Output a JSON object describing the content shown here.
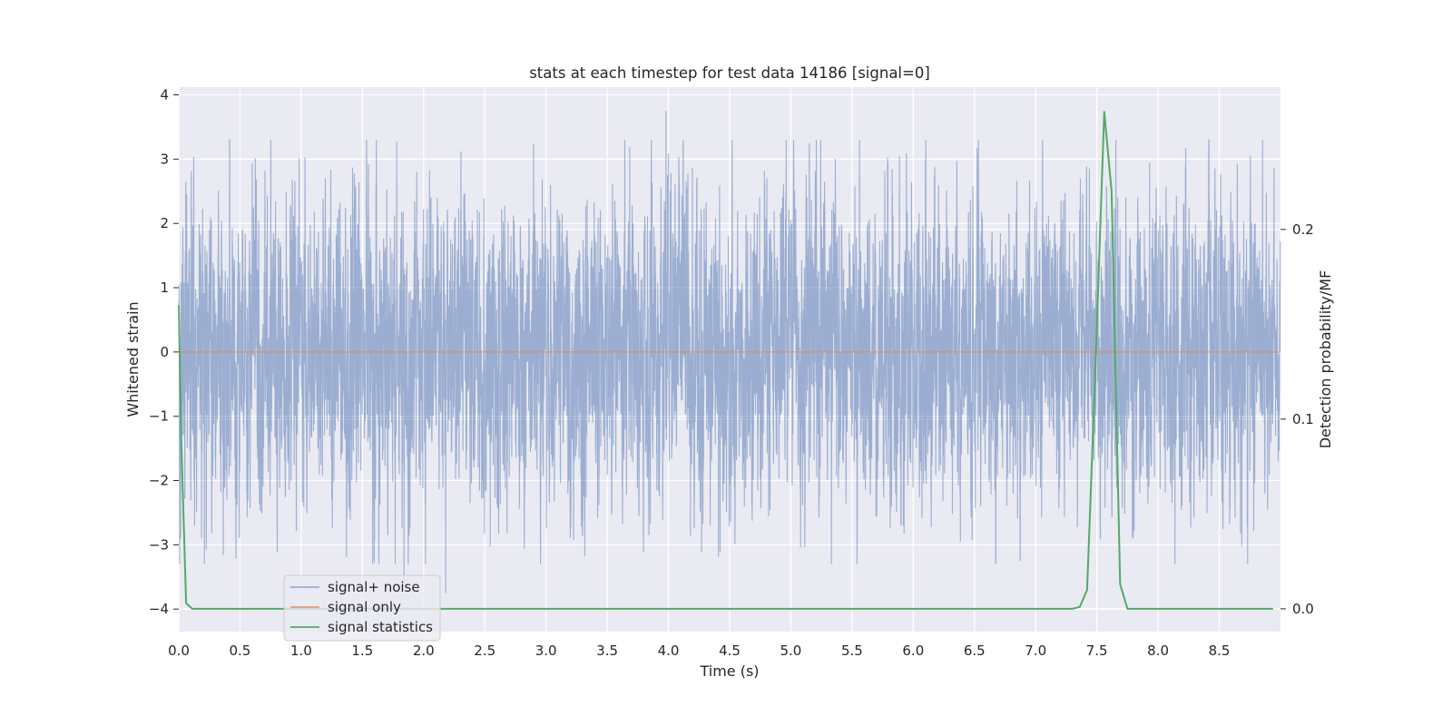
{
  "chart_data": {
    "type": "line",
    "title": "stats at each timestep for test data 14186 [signal=0]",
    "xlabel": "Time (s)",
    "ylabel": "Whitened strain",
    "ylabel_right": "Detection probability/MF",
    "xlim": [
      0,
      9.0
    ],
    "ylim": [
      -4.35,
      4.12
    ],
    "ylim_right": [
      -0.012,
      0.275
    ],
    "x_ticks": [
      "0.0",
      "0.5",
      "1.0",
      "1.5",
      "2.0",
      "2.5",
      "3.0",
      "3.5",
      "4.0",
      "4.5",
      "5.0",
      "5.5",
      "6.0",
      "6.5",
      "7.0",
      "7.5",
      "8.0",
      "8.5"
    ],
    "y_ticks": [
      "4",
      "3",
      "2",
      "1",
      "0",
      "−1",
      "−2",
      "−3",
      "−4"
    ],
    "y_ticks_right": [
      "0.2",
      "0.1",
      "0.0"
    ],
    "grid": true,
    "legend_position": "lower-left",
    "series": [
      {
        "name": "signal+ noise",
        "axis": "left",
        "color": "#4c72b0",
        "style": "dense noise, sample rate 2048 Hz, typical range −2.5 to 2.5, extremes +3.75 near t=3.98 and −3.75 near t=2.18"
      },
      {
        "name": "signal only",
        "axis": "left",
        "color": "#dd8452",
        "x": [
          0.0,
          9.0
        ],
        "y": [
          0.0,
          0.0
        ]
      },
      {
        "name": "signal statistics",
        "axis": "right",
        "color": "#55a868",
        "x": [
          0.0,
          0.02,
          0.06,
          0.11,
          0.2,
          1.0,
          3.0,
          5.0,
          7.0,
          7.3,
          7.36,
          7.42,
          7.49,
          7.56,
          7.62,
          7.69,
          7.75,
          8.0,
          8.5,
          8.94
        ],
        "y": [
          0.16,
          0.09,
          0.003,
          0.0,
          0.0,
          0.0,
          0.0,
          0.0,
          0.0,
          0.0,
          0.001,
          0.01,
          0.13,
          0.262,
          0.22,
          0.013,
          0.0,
          0.0,
          0.0,
          0.0
        ]
      }
    ]
  }
}
